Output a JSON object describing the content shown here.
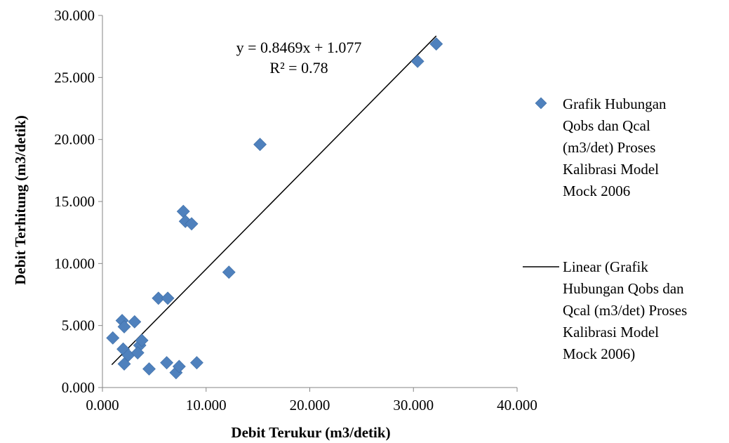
{
  "chart_data": {
    "type": "scatter",
    "xlabel": "Debit Terukur (m3/detik)",
    "ylabel": "Debit Terhitung (m3/detik)",
    "xlim": [
      0,
      40
    ],
    "ylim": [
      0,
      30
    ],
    "x_ticks": [
      "0.000",
      "10.000",
      "20.000",
      "30.000",
      "40.000"
    ],
    "y_ticks": [
      "0.000",
      "5.000",
      "10.000",
      "15.000",
      "20.000",
      "25.000",
      "30.000"
    ],
    "x_tick_values": [
      0,
      10,
      20,
      30,
      40
    ],
    "y_tick_values": [
      0,
      5,
      10,
      15,
      20,
      25,
      30
    ],
    "grid": false,
    "legend_position": "right",
    "series": [
      {
        "name": "Grafik Hubungan Qobs dan Qcal (m3/det) Proses Kalibrasi Model Mock 2006",
        "color": "#4f81bd",
        "marker": "diamond",
        "points": [
          [
            1.0,
            4.0
          ],
          [
            1.9,
            5.4
          ],
          [
            2.1,
            4.9
          ],
          [
            3.1,
            5.3
          ],
          [
            2.0,
            3.1
          ],
          [
            2.5,
            2.6
          ],
          [
            2.1,
            1.9
          ],
          [
            3.6,
            3.4
          ],
          [
            3.8,
            3.8
          ],
          [
            3.4,
            2.8
          ],
          [
            4.5,
            1.5
          ],
          [
            5.4,
            7.2
          ],
          [
            6.3,
            7.2
          ],
          [
            6.2,
            2.0
          ],
          [
            7.1,
            1.2
          ],
          [
            7.4,
            1.7
          ],
          [
            9.1,
            2.0
          ],
          [
            7.8,
            14.2
          ],
          [
            8.0,
            13.4
          ],
          [
            8.6,
            13.2
          ],
          [
            12.2,
            9.3
          ],
          [
            15.2,
            19.6
          ],
          [
            30.4,
            26.3
          ],
          [
            32.2,
            27.7
          ]
        ]
      }
    ],
    "trendline": {
      "name": "Linear (Grafik Hubungan Qobs dan Qcal (m3/det) Proses Kalibrasi Model Mock 2006)",
      "slope": 0.8469,
      "intercept": 1.077,
      "x_range": [
        0.9,
        32.2
      ],
      "color": "#000000"
    },
    "annotation": {
      "equation": "y = 0.8469x + 1.077",
      "r_squared": "R² = 0.78"
    },
    "legend": {
      "marker_lines": [
        "Grafik Hubungan",
        "Qobs dan Qcal",
        "(m3/det) Proses",
        "Kalibrasi Model",
        "Mock 2006"
      ],
      "line_lines": [
        "Linear (Grafik",
        "Hubungan Qobs dan",
        "Qcal (m3/det) Proses",
        "Kalibrasi Model",
        "Mock 2006)"
      ]
    }
  }
}
